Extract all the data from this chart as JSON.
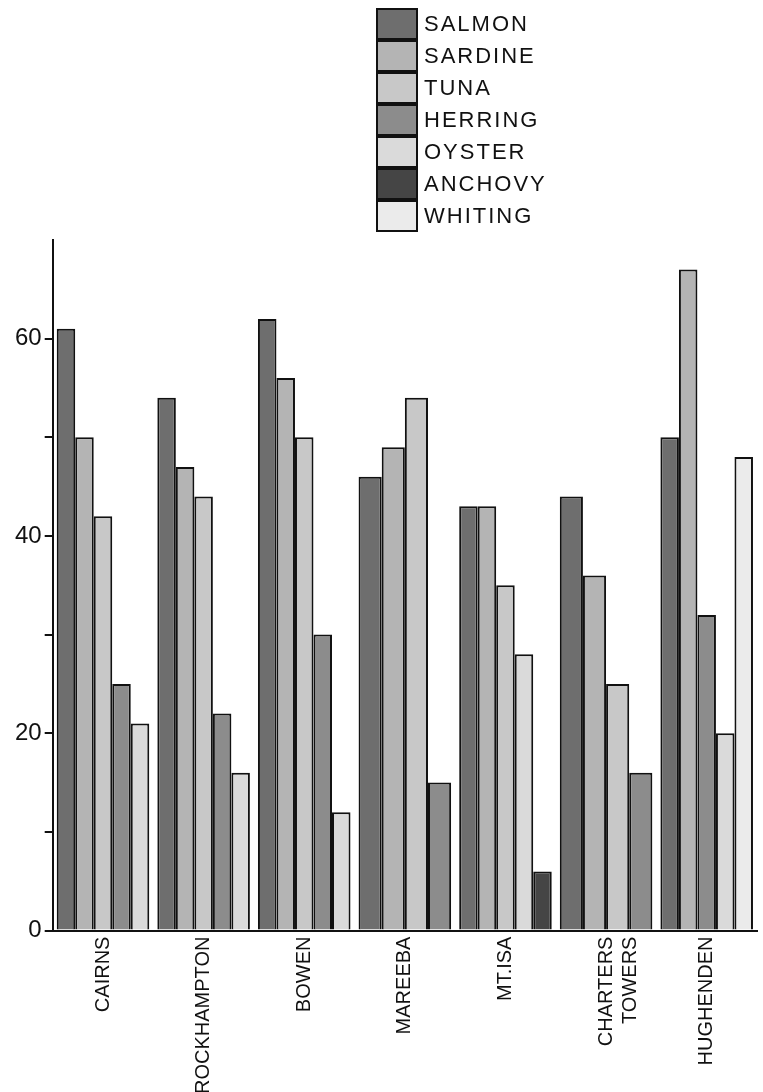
{
  "chart_data": {
    "type": "bar",
    "categories": [
      "CAIRNS",
      "ROCKHAMPTON",
      "BOWEN",
      "MAREEBA",
      "MT.ISA",
      "CHARTERS TOWERS",
      "HUGHENDEN"
    ],
    "series": [
      {
        "name": "SALMON",
        "color": "#6e6e6e",
        "values": [
          61,
          54,
          62,
          46,
          43,
          44,
          50
        ]
      },
      {
        "name": "SARDINE",
        "color": "#b4b4b4",
        "values": [
          50,
          47,
          56,
          49,
          43,
          36,
          67
        ]
      },
      {
        "name": "TUNA",
        "color": "#c8c8c8",
        "values": [
          42,
          44,
          50,
          54,
          35,
          25,
          null
        ]
      },
      {
        "name": "HERRING",
        "color": "#8c8c8c",
        "values": [
          25,
          22,
          30,
          15,
          null,
          16,
          32
        ]
      },
      {
        "name": "OYSTER",
        "color": "#dadada",
        "values": [
          21,
          16,
          12,
          null,
          28,
          null,
          20
        ]
      },
      {
        "name": "ANCHOVY",
        "color": "#454545",
        "values": [
          null,
          null,
          null,
          null,
          6,
          null,
          null
        ]
      },
      {
        "name": "WHITING",
        "color": "#ebebeb",
        "values": [
          null,
          null,
          null,
          null,
          null,
          null,
          48
        ]
      }
    ],
    "ylim": [
      0,
      70
    ],
    "yticks": [
      0,
      {
        "value": 10,
        "label": null
      },
      20,
      {
        "value": 30,
        "label": null
      },
      40,
      {
        "value": 50,
        "label": null
      },
      60
    ],
    "grid": false,
    "legend": "top"
  }
}
